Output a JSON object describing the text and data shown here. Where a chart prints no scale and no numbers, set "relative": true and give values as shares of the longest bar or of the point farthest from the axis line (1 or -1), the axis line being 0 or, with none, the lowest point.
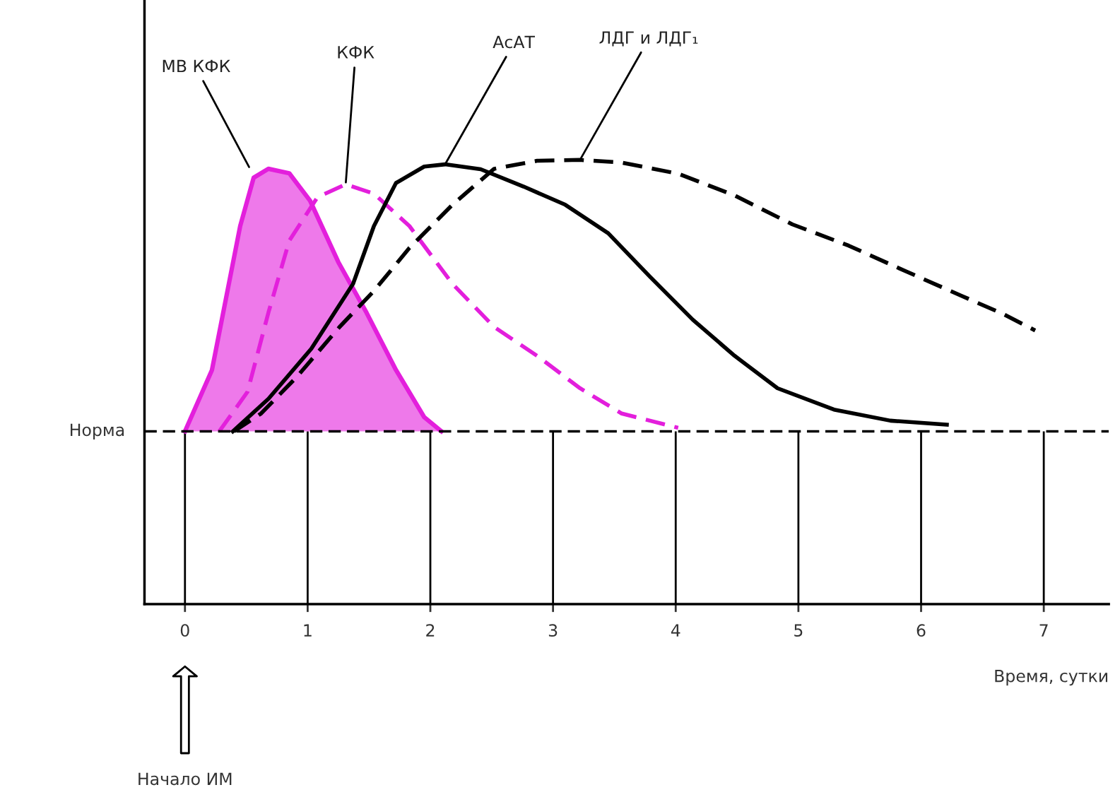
{
  "chart_data": {
    "type": "line",
    "relative": true,
    "xlabel": "Время, сутки",
    "xlim": [
      -0.33,
      7.53
    ],
    "xticks": [
      0,
      1,
      2,
      3,
      4,
      5,
      6,
      7
    ],
    "grid": "x",
    "series": [
      {
        "name": "МВ КФК",
        "type": "area",
        "color": "#e31fdc",
        "line_style": "solid",
        "x": [
          0,
          0.22,
          0.45,
          0.56,
          0.68,
          0.85,
          1.02,
          1.25,
          1.48,
          1.72,
          1.95,
          2.09
        ],
        "values": [
          0.389,
          0.527,
          0.851,
          0.96,
          0.98,
          0.97,
          0.908,
          0.77,
          0.656,
          0.527,
          0.421,
          0.389
        ]
      },
      {
        "name": "КФК",
        "color": "#e31fdc",
        "line_style": "dashed",
        "x": [
          0.28,
          0.51,
          0.68,
          0.85,
          1.08,
          1.31,
          1.54,
          1.83,
          2.18,
          2.52,
          2.87,
          3.22,
          3.56,
          4.02
        ],
        "values": [
          0.389,
          0.478,
          0.656,
          0.818,
          0.916,
          0.945,
          0.924,
          0.851,
          0.721,
          0.624,
          0.559,
          0.486,
          0.429,
          0.397
        ]
      },
      {
        "name": "АсАТ",
        "color": "#000000",
        "line_style": "solid",
        "x": [
          0.39,
          0.68,
          1.03,
          1.37,
          1.54,
          1.72,
          1.95,
          2.12,
          2.41,
          2.76,
          3.1,
          3.45,
          3.79,
          4.14,
          4.48,
          4.83,
          5.29,
          5.75,
          6.21
        ],
        "values": [
          0.389,
          0.462,
          0.575,
          0.721,
          0.851,
          0.948,
          0.985,
          0.99,
          0.979,
          0.94,
          0.899,
          0.835,
          0.737,
          0.64,
          0.559,
          0.486,
          0.438,
          0.413,
          0.404
        ]
      },
      {
        "name": "ЛДГ и ЛДГ₁",
        "color": "#000000",
        "line_style": "dashed",
        "x": [
          0.4,
          0.62,
          0.91,
          1.26,
          1.54,
          1.83,
          2.18,
          2.52,
          2.87,
          3.22,
          3.56,
          4.02,
          4.48,
          4.95,
          5.41,
          5.87,
          6.33,
          6.67,
          6.93
        ],
        "values": [
          0.389,
          0.429,
          0.511,
          0.624,
          0.705,
          0.802,
          0.899,
          0.98,
          0.998,
          1.0,
          0.994,
          0.969,
          0.92,
          0.855,
          0.807,
          0.75,
          0.694,
          0.653,
          0.616
        ]
      }
    ],
    "ref_lines": [
      {
        "axis": "y",
        "value": 0.389,
        "label": "Норма",
        "color": "#000000",
        "line_style": "dashed"
      }
    ],
    "annotations": [
      "Начало ИМ"
    ]
  }
}
